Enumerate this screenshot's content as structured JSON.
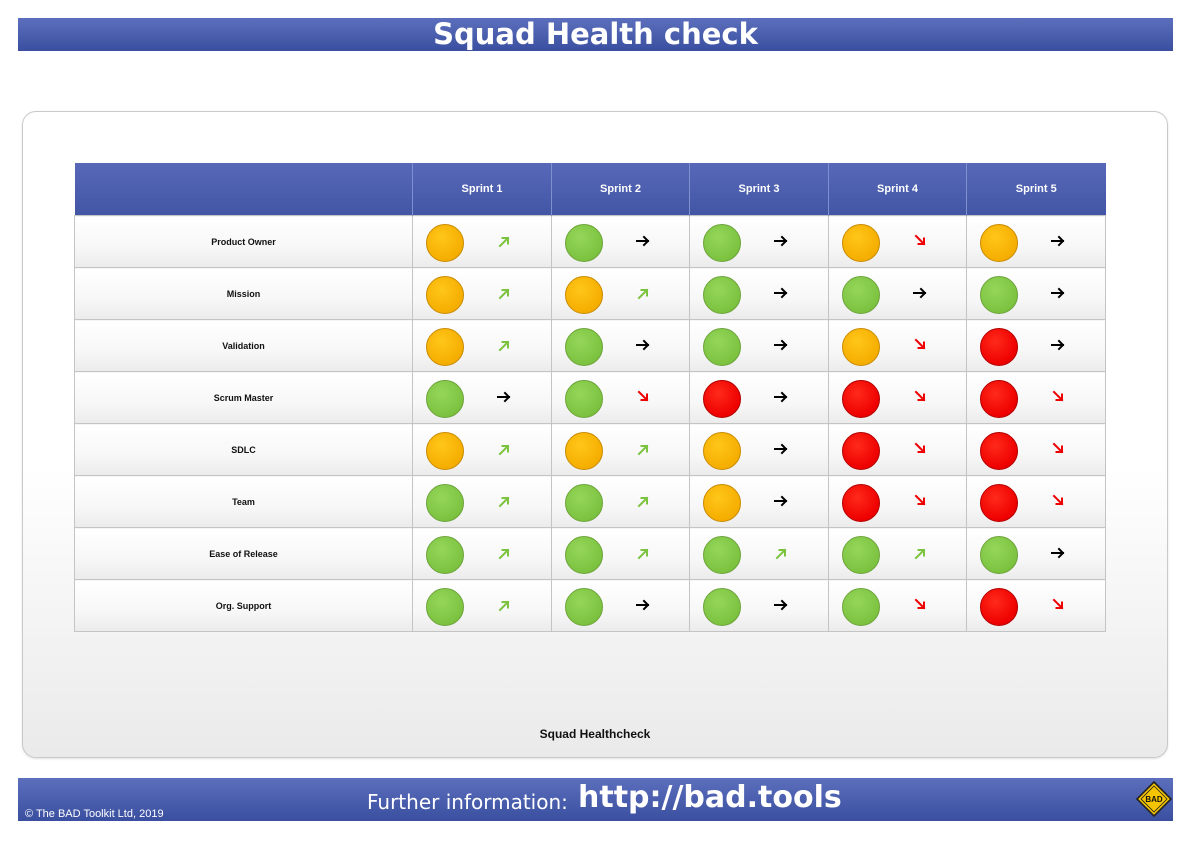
{
  "header": {
    "title": "Squad Health check"
  },
  "table": {
    "columns": [
      "Sprint 1",
      "Sprint 2",
      "Sprint 3",
      "Sprint 4",
      "Sprint 5"
    ],
    "rows": [
      {
        "label": "Product Owner",
        "cells": [
          [
            "amber",
            "up"
          ],
          [
            "green",
            "right"
          ],
          [
            "green",
            "right"
          ],
          [
            "amber",
            "down"
          ],
          [
            "amber",
            "right"
          ]
        ]
      },
      {
        "label": "Mission",
        "cells": [
          [
            "amber",
            "up"
          ],
          [
            "amber",
            "up"
          ],
          [
            "green",
            "right"
          ],
          [
            "green",
            "right"
          ],
          [
            "green",
            "right"
          ]
        ]
      },
      {
        "label": "Validation",
        "cells": [
          [
            "amber",
            "up"
          ],
          [
            "green",
            "right"
          ],
          [
            "green",
            "right"
          ],
          [
            "amber",
            "down"
          ],
          [
            "red",
            "right"
          ]
        ]
      },
      {
        "label": "Scrum Master",
        "cells": [
          [
            "green",
            "right"
          ],
          [
            "green",
            "down"
          ],
          [
            "red",
            "right"
          ],
          [
            "red",
            "down"
          ],
          [
            "red",
            "down"
          ]
        ]
      },
      {
        "label": "SDLC",
        "cells": [
          [
            "amber",
            "up"
          ],
          [
            "amber",
            "up"
          ],
          [
            "amber",
            "right"
          ],
          [
            "red",
            "down"
          ],
          [
            "red",
            "down"
          ]
        ]
      },
      {
        "label": "Team",
        "cells": [
          [
            "green",
            "up"
          ],
          [
            "green",
            "up"
          ],
          [
            "amber",
            "right"
          ],
          [
            "red",
            "down"
          ],
          [
            "red",
            "down"
          ]
        ]
      },
      {
        "label": "Ease of Release",
        "cells": [
          [
            "green",
            "up"
          ],
          [
            "green",
            "up"
          ],
          [
            "green",
            "up"
          ],
          [
            "green",
            "up"
          ],
          [
            "green",
            "right"
          ]
        ]
      },
      {
        "label": "Org. Support",
        "cells": [
          [
            "green",
            "up"
          ],
          [
            "green",
            "right"
          ],
          [
            "green",
            "right"
          ],
          [
            "green",
            "down"
          ],
          [
            "red",
            "down"
          ]
        ]
      }
    ]
  },
  "caption": "Squad Healthcheck",
  "footer": {
    "copyright": "© The BAD Toolkit Ltd, 2019",
    "further_label": "Further information:",
    "url": "http://bad.tools",
    "logo_text": "BAD"
  },
  "colors": {
    "header_blue": "#4256a5",
    "status_green": "#7cc340",
    "status_amber": "#f5ae00",
    "status_red": "#ee0000",
    "trend_up": "#7cc340",
    "trend_right": "#000000",
    "trend_down": "#ee0000"
  },
  "icons": {
    "up": "arrow-up-right-icon",
    "right": "arrow-right-icon",
    "down": "arrow-down-right-icon"
  }
}
